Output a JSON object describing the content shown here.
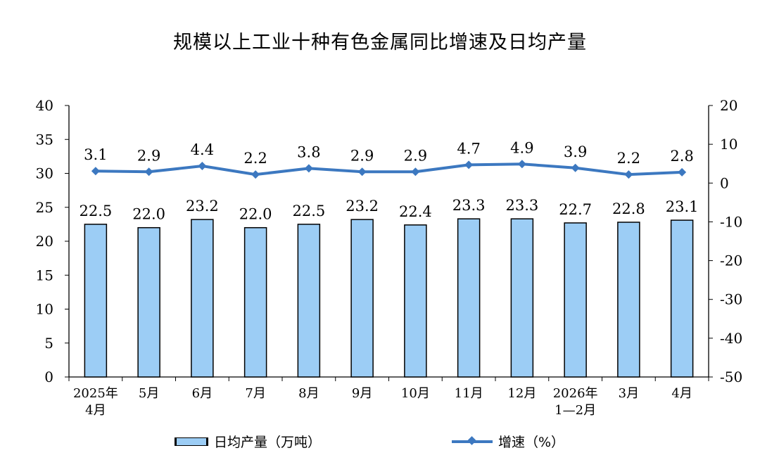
{
  "chart_data": {
    "title": "规模以上工业十种有色金属同比增速及日均产量",
    "type": "bar+line",
    "categories": [
      [
        "2025年",
        "4月"
      ],
      [
        "5月"
      ],
      [
        "6月"
      ],
      [
        "7月"
      ],
      [
        "8月"
      ],
      [
        "9月"
      ],
      [
        "10月"
      ],
      [
        "11月"
      ],
      [
        "12月"
      ],
      [
        "2026年",
        "1—2月"
      ],
      [
        "3月"
      ],
      [
        "4月"
      ]
    ],
    "series": [
      {
        "name": "日均产量（万吨）",
        "type": "bar",
        "axis": "left",
        "values": [
          22.5,
          22.0,
          23.2,
          22.0,
          22.5,
          23.2,
          22.4,
          23.3,
          23.3,
          22.7,
          22.8,
          23.1
        ],
        "labels": [
          "22.5",
          "22.0",
          "23.2",
          "22.0",
          "22.5",
          "23.2",
          "22.4",
          "23.3",
          "23.3",
          "22.7",
          "22.8",
          "23.1"
        ],
        "color": "#9ccdf5"
      },
      {
        "name": "增速（%）",
        "type": "line",
        "axis": "right",
        "values": [
          3.1,
          2.9,
          4.4,
          2.2,
          3.8,
          2.9,
          2.9,
          4.7,
          4.9,
          3.9,
          2.2,
          2.8
        ],
        "labels": [
          "3.1",
          "2.9",
          "4.4",
          "2.2",
          "3.8",
          "2.9",
          "2.9",
          "4.7",
          "4.9",
          "3.9",
          "2.2",
          "2.8"
        ],
        "color": "#3c78c0"
      }
    ],
    "y_left": {
      "min": 0,
      "max": 40,
      "ticks": [
        "0",
        "5",
        "10",
        "15",
        "20",
        "25",
        "30",
        "35",
        "40"
      ]
    },
    "y_right": {
      "min": -50,
      "max": 20,
      "ticks": [
        "-50",
        "-40",
        "-30",
        "-20",
        "-10",
        "0",
        "10",
        "20"
      ]
    },
    "grid": false,
    "legend_position": "bottom"
  }
}
